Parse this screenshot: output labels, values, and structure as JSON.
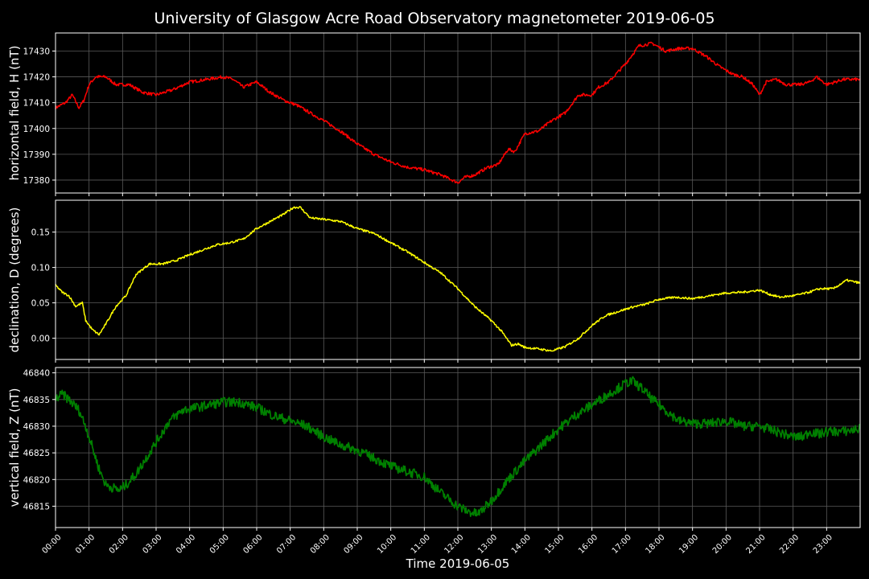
{
  "colors": {
    "background": "#000000",
    "text": "#ffffff",
    "grid": "#5a5a5a"
  },
  "chart_data": {
    "type": "line",
    "title": "University of Glasgow Acre Road Observatory magnetometer 2019-06-05",
    "xlabel": "Time 2019-06-05",
    "x_unit": "hours",
    "xlim": [
      0,
      24
    ],
    "x_tick_labels": [
      "00:00",
      "01:00",
      "02:00",
      "03:00",
      "04:00",
      "05:00",
      "06:00",
      "07:00",
      "08:00",
      "09:00",
      "10:00",
      "11:00",
      "12:00",
      "13:00",
      "14:00",
      "15:00",
      "16:00",
      "17:00",
      "18:00",
      "19:00",
      "20:00",
      "21:00",
      "22:00",
      "23:00"
    ],
    "grid": true,
    "panels": [
      {
        "ylabel": "horizontal field, H (nT)",
        "color": "#ff0000",
        "ylim": [
          17375,
          17437
        ],
        "yticks": [
          17380,
          17390,
          17400,
          17410,
          17420,
          17430
        ],
        "ytick_labels": [
          "17380",
          "17390",
          "17400",
          "17410",
          "17420",
          "17430"
        ],
        "noise": 0.6,
        "series": {
          "x": [
            0,
            0.3,
            0.5,
            0.7,
            0.85,
            1,
            1.2,
            1.5,
            1.8,
            2.2,
            2.6,
            3,
            3.5,
            4,
            4.5,
            5,
            5.3,
            5.6,
            6,
            6.4,
            6.8,
            7.2,
            7.6,
            8,
            8.5,
            9,
            9.5,
            10,
            10.5,
            11,
            11.5,
            12,
            12.2,
            12.5,
            12.9,
            13.2,
            13.5,
            13.7,
            14,
            14.4,
            14.8,
            15.2,
            15.6,
            16,
            16.2,
            16.5,
            17,
            17.4,
            17.8,
            18.2,
            18.6,
            19,
            19.4,
            19.8,
            20.2,
            20.5,
            20.8,
            21,
            21.2,
            21.5,
            21.8,
            22.2,
            22.5,
            22.7,
            23,
            23.5,
            24
          ],
          "values": [
            17408,
            17410,
            17413,
            17408,
            17411,
            17417,
            17420,
            17420,
            17417,
            17417,
            17414,
            17413,
            17415,
            17418,
            17419,
            17420,
            17419,
            17416,
            17418,
            17414,
            17411,
            17409,
            17406,
            17403,
            17399,
            17394,
            17390,
            17387,
            17385,
            17384,
            17382,
            17379,
            17381,
            17382,
            17385,
            17386,
            17392,
            17391,
            17398,
            17399,
            17403,
            17406,
            17413,
            17413,
            17416,
            17418,
            17425,
            17432,
            17433,
            17430,
            17431,
            17431,
            17428,
            17424,
            17421,
            17420,
            17417,
            17413,
            17418,
            17419,
            17417,
            17417,
            17418,
            17420,
            17417,
            17419,
            17419
          ]
        }
      },
      {
        "ylabel": "declination, D (degrees)",
        "color": "#ffff00",
        "ylim": [
          -0.03,
          0.195
        ],
        "yticks": [
          0.0,
          0.05,
          0.1,
          0.15
        ],
        "ytick_labels": [
          "0.00",
          "0.05",
          "0.10",
          "0.15"
        ],
        "noise": 0.0015,
        "series": {
          "x": [
            0,
            0.2,
            0.4,
            0.6,
            0.8,
            0.9,
            1.1,
            1.3,
            1.5,
            1.8,
            2.1,
            2.4,
            2.8,
            3.2,
            3.6,
            4,
            4.4,
            4.8,
            5.2,
            5.6,
            6,
            6.4,
            6.8,
            7.1,
            7.3,
            7.6,
            8,
            8.5,
            9,
            9.5,
            10,
            10.5,
            11,
            11.5,
            12,
            12.5,
            13,
            13.3,
            13.6,
            13.8,
            14,
            14.4,
            14.8,
            15.2,
            15.6,
            16,
            16.4,
            16.8,
            17.2,
            17.6,
            18,
            18.5,
            19,
            19.5,
            20,
            20.5,
            21,
            21.3,
            21.6,
            22,
            22.4,
            22.8,
            23.2,
            23.6,
            24
          ],
          "values": [
            0.075,
            0.065,
            0.06,
            0.045,
            0.05,
            0.025,
            0.012,
            0.005,
            0.02,
            0.045,
            0.06,
            0.09,
            0.105,
            0.105,
            0.11,
            0.118,
            0.125,
            0.132,
            0.135,
            0.14,
            0.155,
            0.165,
            0.175,
            0.185,
            0.185,
            0.17,
            0.168,
            0.165,
            0.155,
            0.148,
            0.135,
            0.122,
            0.107,
            0.092,
            0.07,
            0.045,
            0.025,
            0.01,
            -0.01,
            -0.008,
            -0.013,
            -0.015,
            -0.018,
            -0.012,
            0.0,
            0.018,
            0.032,
            0.038,
            0.044,
            0.048,
            0.055,
            0.058,
            0.056,
            0.06,
            0.064,
            0.065,
            0.068,
            0.062,
            0.058,
            0.06,
            0.064,
            0.07,
            0.07,
            0.082,
            0.078
          ]
        }
      },
      {
        "ylabel": "vertical field, Z (nT)",
        "color": "#008000",
        "ylim": [
          46811,
          46841
        ],
        "yticks": [
          46815,
          46820,
          46825,
          46830,
          46835,
          46840
        ],
        "ytick_labels": [
          "46815",
          "46820",
          "46825",
          "46830",
          "46835",
          "46840"
        ],
        "noise": 0.9,
        "series": {
          "x": [
            0,
            0.2,
            0.4,
            0.7,
            0.9,
            1.1,
            1.3,
            1.5,
            1.7,
            1.9,
            2.1,
            2.4,
            2.7,
            3,
            3.4,
            3.8,
            4.2,
            4.6,
            5,
            5.5,
            6,
            6.5,
            7,
            7.5,
            8,
            8.5,
            9,
            9.5,
            10,
            10.5,
            11,
            11.5,
            12,
            12.3,
            12.6,
            13,
            13.5,
            14,
            14.5,
            15,
            15.5,
            16,
            16.5,
            17,
            17.2,
            17.5,
            17.8,
            18.2,
            18.6,
            19,
            19.5,
            20,
            20.5,
            21,
            21.5,
            22,
            22.3,
            22.5,
            22.8,
            23,
            23.5,
            24
          ],
          "values": [
            46835,
            46836,
            46835,
            46833,
            46830,
            46826,
            46822,
            46819,
            46818.5,
            46818,
            46819,
            46821,
            46824,
            46827,
            46831,
            46833,
            46833.5,
            46834,
            46834.5,
            46834.5,
            46833.5,
            46832,
            46831,
            46830,
            46828,
            46826.5,
            46825.5,
            46824,
            46822.5,
            46821.5,
            46820.5,
            46817.5,
            46815,
            46814,
            46813.5,
            46816,
            46820,
            46823.5,
            46826.5,
            46829.5,
            46832,
            46834,
            46836,
            46838,
            46838.5,
            46837,
            46835,
            46833,
            46831,
            46830.5,
            46830.5,
            46831,
            46830,
            46830,
            46829,
            46828,
            46828,
            46829,
            46828.5,
            46829,
            46829,
            46829.5
          ]
        }
      }
    ]
  }
}
